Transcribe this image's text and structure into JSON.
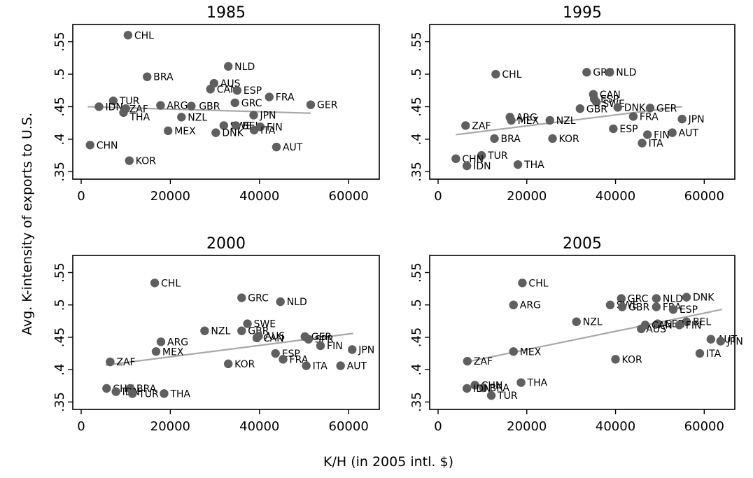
{
  "y_axis_title": "Avg. K-intensity of exports to U.S.",
  "x_axis_title": "K/H (in 2005 intl. $)",
  "colors": {
    "point": "#5f5f5f",
    "fit_line": "#a8a8a8",
    "frame": "#000000"
  },
  "chart_data": [
    {
      "type": "scatter",
      "title": "1985",
      "xlim": [
        0,
        65000
      ],
      "ylim": [
        0.345,
        0.57
      ],
      "xticks": [
        0,
        20000,
        40000,
        60000
      ],
      "xtick_labels": [
        "0",
        "20000",
        "40000",
        "60000"
      ],
      "yticks": [
        0.35,
        0.4,
        0.45,
        0.5,
        0.55
      ],
      "ytick_labels": [
        ".35",
        ".4",
        ".45",
        ".5",
        ".55"
      ],
      "fit_line": {
        "x": [
          1500,
          51500
        ],
        "y": [
          0.45,
          0.44
        ]
      },
      "points": [
        {
          "label": "CHL",
          "x": 10500,
          "y": 0.56
        },
        {
          "label": "BRA",
          "x": 14800,
          "y": 0.496
        },
        {
          "label": "NLD",
          "x": 33000,
          "y": 0.512
        },
        {
          "label": "AUS",
          "x": 29800,
          "y": 0.486
        },
        {
          "label": "CAN",
          "x": 29000,
          "y": 0.477
        },
        {
          "label": "ESP",
          "x": 35000,
          "y": 0.475
        },
        {
          "label": "FRA",
          "x": 42200,
          "y": 0.465
        },
        {
          "label": "GRC",
          "x": 34500,
          "y": 0.456
        },
        {
          "label": "GER",
          "x": 51500,
          "y": 0.453
        },
        {
          "label": "TUR",
          "x": 7200,
          "y": 0.459
        },
        {
          "label": "IDN",
          "x": 4000,
          "y": 0.45
        },
        {
          "label": "ZAF",
          "x": 10000,
          "y": 0.447
        },
        {
          "label": "THA",
          "x": 9500,
          "y": 0.441
        },
        {
          "label": "ARG",
          "x": 17800,
          "y": 0.452
        },
        {
          "label": "GBR",
          "x": 24700,
          "y": 0.451
        },
        {
          "label": "JPN",
          "x": 38700,
          "y": 0.437
        },
        {
          "label": "NZL",
          "x": 22500,
          "y": 0.434
        },
        {
          "label": "SWE",
          "x": 32000,
          "y": 0.421
        },
        {
          "label": "BEL",
          "x": 34700,
          "y": 0.421
        },
        {
          "label": "FIN",
          "x": 40200,
          "y": 0.419
        },
        {
          "label": "ITA",
          "x": 38800,
          "y": 0.414
        },
        {
          "label": "MEX",
          "x": 19500,
          "y": 0.413
        },
        {
          "label": "DNK",
          "x": 30200,
          "y": 0.41
        },
        {
          "label": "CHN",
          "x": 2000,
          "y": 0.391
        },
        {
          "label": "AUT",
          "x": 43800,
          "y": 0.388
        },
        {
          "label": "KOR",
          "x": 10800,
          "y": 0.367
        }
      ]
    },
    {
      "type": "scatter",
      "title": "1995",
      "xlim": [
        0,
        65000
      ],
      "ylim": [
        0.345,
        0.57
      ],
      "xticks": [
        0,
        20000,
        40000,
        60000
      ],
      "xtick_labels": [
        "0",
        "20000",
        "40000",
        "60000"
      ],
      "yticks": [
        0.35,
        0.4,
        0.45,
        0.5,
        0.55
      ],
      "ytick_labels": [
        ".35",
        ".4",
        ".45",
        ".5",
        ".55"
      ],
      "fit_line": {
        "x": [
          4000,
          55000
        ],
        "y": [
          0.407,
          0.45
        ]
      },
      "points": [
        {
          "label": "CHL",
          "x": 13000,
          "y": 0.5
        },
        {
          "label": "GRC",
          "x": 33500,
          "y": 0.503
        },
        {
          "label": "NLD",
          "x": 38700,
          "y": 0.503
        },
        {
          "label": "CAN",
          "x": 35000,
          "y": 0.469
        },
        {
          "label": "ESP",
          "x": 35200,
          "y": 0.462
        },
        {
          "label": "SWE",
          "x": 35700,
          "y": 0.457
        },
        {
          "label": "DNK",
          "x": 40500,
          "y": 0.449
        },
        {
          "label": "GER",
          "x": 47800,
          "y": 0.448
        },
        {
          "label": "GBR",
          "x": 32000,
          "y": 0.447
        },
        {
          "label": "FRA",
          "x": 44000,
          "y": 0.435
        },
        {
          "label": "ARG",
          "x": 16200,
          "y": 0.434
        },
        {
          "label": "MEX",
          "x": 16500,
          "y": 0.429
        },
        {
          "label": "NZL",
          "x": 25200,
          "y": 0.429
        },
        {
          "label": "JPN",
          "x": 55000,
          "y": 0.431
        },
        {
          "label": "ZAF",
          "x": 6200,
          "y": 0.421
        },
        {
          "label": "ESP",
          "x": 39500,
          "y": 0.416
        },
        {
          "label": "AUT",
          "x": 52800,
          "y": 0.41
        },
        {
          "label": "FIN",
          "x": 47200,
          "y": 0.407
        },
        {
          "label": "BRA",
          "x": 12700,
          "y": 0.401
        },
        {
          "label": "KOR",
          "x": 25800,
          "y": 0.401
        },
        {
          "label": "ITA",
          "x": 46000,
          "y": 0.394
        },
        {
          "label": "TUR",
          "x": 9800,
          "y": 0.375
        },
        {
          "label": "CHN",
          "x": 4000,
          "y": 0.37
        },
        {
          "label": "THA",
          "x": 18000,
          "y": 0.361
        },
        {
          "label": "IDN",
          "x": 6500,
          "y": 0.359
        }
      ]
    },
    {
      "type": "scatter",
      "title": "2000",
      "xlim": [
        0,
        65000
      ],
      "ylim": [
        0.345,
        0.57
      ],
      "xticks": [
        0,
        20000,
        40000,
        60000
      ],
      "xtick_labels": [
        "0",
        "20000",
        "40000",
        "60000"
      ],
      "yticks": [
        0.35,
        0.4,
        0.45,
        0.5,
        0.55
      ],
      "ytick_labels": [
        ".35",
        ".4",
        ".45",
        ".5",
        ".55"
      ],
      "fit_line": {
        "x": [
          5500,
          61000
        ],
        "y": [
          0.407,
          0.456
        ]
      },
      "points": [
        {
          "label": "CHL",
          "x": 16500,
          "y": 0.534
        },
        {
          "label": "GRC",
          "x": 36000,
          "y": 0.511
        },
        {
          "label": "NLD",
          "x": 44700,
          "y": 0.505
        },
        {
          "label": "SWE",
          "x": 37300,
          "y": 0.471
        },
        {
          "label": "NZL",
          "x": 27700,
          "y": 0.46
        },
        {
          "label": "GBR",
          "x": 36000,
          "y": 0.46
        },
        {
          "label": "AUS",
          "x": 39800,
          "y": 0.452
        },
        {
          "label": "CAN",
          "x": 39400,
          "y": 0.449
        },
        {
          "label": "GER",
          "x": 50200,
          "y": 0.451
        },
        {
          "label": "SPR",
          "x": 51000,
          "y": 0.447
        },
        {
          "label": "ARG",
          "x": 17900,
          "y": 0.443
        },
        {
          "label": "FIN",
          "x": 53700,
          "y": 0.437
        },
        {
          "label": "JPN",
          "x": 60800,
          "y": 0.431
        },
        {
          "label": "MEX",
          "x": 16800,
          "y": 0.428
        },
        {
          "label": "ESP",
          "x": 43600,
          "y": 0.425
        },
        {
          "label": "FRA",
          "x": 45300,
          "y": 0.416
        },
        {
          "label": "ZAF",
          "x": 6500,
          "y": 0.412
        },
        {
          "label": "KOR",
          "x": 33000,
          "y": 0.409
        },
        {
          "label": "ITA",
          "x": 50500,
          "y": 0.406
        },
        {
          "label": "AUT",
          "x": 58200,
          "y": 0.406
        },
        {
          "label": "CHN",
          "x": 5700,
          "y": 0.371
        },
        {
          "label": "BRA",
          "x": 11000,
          "y": 0.371
        },
        {
          "label": "IDN",
          "x": 7800,
          "y": 0.366
        },
        {
          "label": "TUR",
          "x": 11500,
          "y": 0.363
        },
        {
          "label": "THA",
          "x": 18600,
          "y": 0.363
        }
      ]
    },
    {
      "type": "scatter",
      "title": "2005",
      "xlim": [
        0,
        65000
      ],
      "ylim": [
        0.345,
        0.57
      ],
      "xticks": [
        0,
        20000,
        40000,
        60000
      ],
      "xtick_labels": [
        "0",
        "20000",
        "40000",
        "60000"
      ],
      "yticks": [
        0.35,
        0.4,
        0.45,
        0.5,
        0.55
      ],
      "ytick_labels": [
        ".35",
        ".4",
        ".45",
        ".5",
        ".55"
      ],
      "fit_line": {
        "x": [
          6500,
          64000
        ],
        "y": [
          0.412,
          0.493
        ]
      },
      "points": [
        {
          "label": "CHL",
          "x": 19000,
          "y": 0.534
        },
        {
          "label": "DNK",
          "x": 56000,
          "y": 0.512
        },
        {
          "label": "NLD",
          "x": 49200,
          "y": 0.51
        },
        {
          "label": "GRC",
          "x": 41300,
          "y": 0.51
        },
        {
          "label": "ARG",
          "x": 17000,
          "y": 0.5
        },
        {
          "label": "SWE",
          "x": 38800,
          "y": 0.5
        },
        {
          "label": "GBR",
          "x": 41500,
          "y": 0.497
        },
        {
          "label": "FRA",
          "x": 49200,
          "y": 0.497
        },
        {
          "label": "ESP",
          "x": 53000,
          "y": 0.493
        },
        {
          "label": "NZL",
          "x": 31200,
          "y": 0.474
        },
        {
          "label": "BEL",
          "x": 56000,
          "y": 0.474
        },
        {
          "label": "GER",
          "x": 49500,
          "y": 0.471
        },
        {
          "label": "CAN",
          "x": 46700,
          "y": 0.469
        },
        {
          "label": "FIN",
          "x": 54400,
          "y": 0.469
        },
        {
          "label": "AUS",
          "x": 45800,
          "y": 0.463
        },
        {
          "label": "AUT",
          "x": 61500,
          "y": 0.447
        },
        {
          "label": "JPN",
          "x": 63700,
          "y": 0.444
        },
        {
          "label": "MEX",
          "x": 17000,
          "y": 0.428
        },
        {
          "label": "ITA",
          "x": 59000,
          "y": 0.425
        },
        {
          "label": "KOR",
          "x": 40000,
          "y": 0.416
        },
        {
          "label": "ZAF",
          "x": 6600,
          "y": 0.413
        },
        {
          "label": "THA",
          "x": 18700,
          "y": 0.38
        },
        {
          "label": "CHN",
          "x": 8300,
          "y": 0.376
        },
        {
          "label": "BRA",
          "x": 10200,
          "y": 0.372
        },
        {
          "label": "IDN",
          "x": 6500,
          "y": 0.371
        },
        {
          "label": "TUR",
          "x": 12000,
          "y": 0.36
        }
      ]
    }
  ]
}
